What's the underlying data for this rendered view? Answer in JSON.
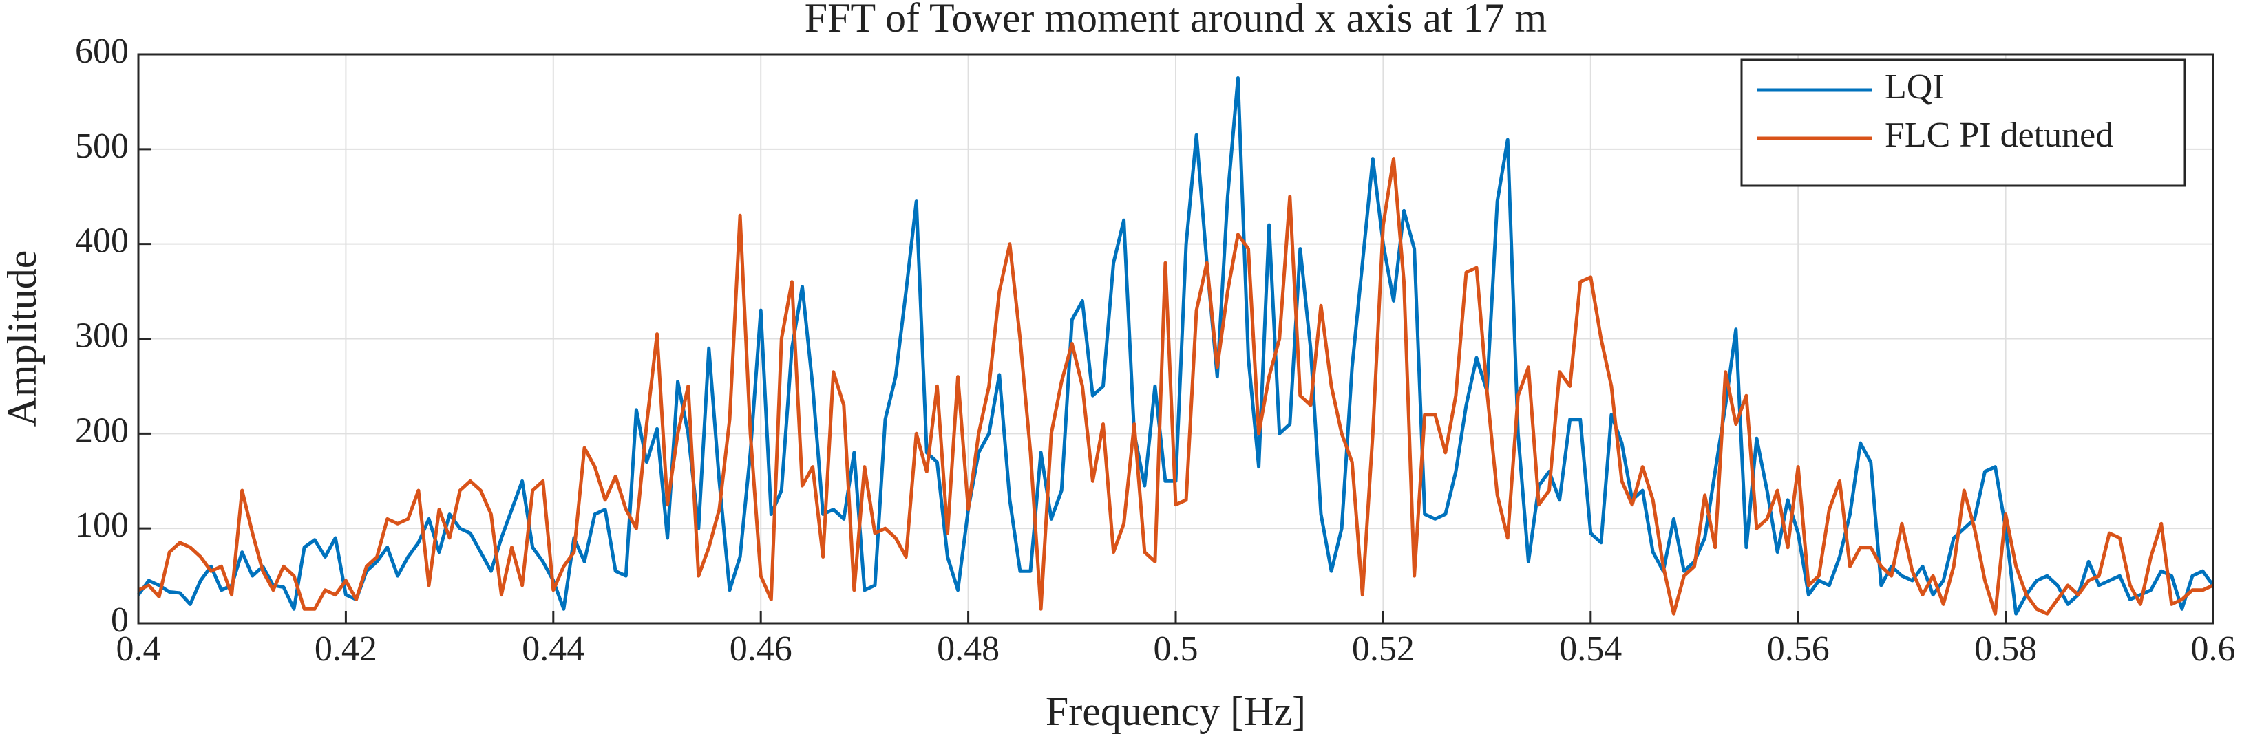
{
  "chart_data": {
    "type": "line",
    "title": "FFT of Tower moment around x axis at 17 m",
    "xlabel": "Frequency [Hz]",
    "ylabel": "Amplitude",
    "xlim": [
      0.4,
      0.6
    ],
    "ylim": [
      0,
      600
    ],
    "xticks": [
      0.4,
      0.42,
      0.44,
      0.46,
      0.48,
      0.5,
      0.52,
      0.54,
      0.56,
      0.58,
      0.6
    ],
    "yticks": [
      0,
      100,
      200,
      300,
      400,
      500,
      600
    ],
    "grid": true,
    "legend": "upper right",
    "x": [
      0.4,
      0.401,
      0.402,
      0.403,
      0.404,
      0.405,
      0.406,
      0.407,
      0.408,
      0.409,
      0.41,
      0.411,
      0.412,
      0.413,
      0.414,
      0.415,
      0.416,
      0.417,
      0.418,
      0.419,
      0.42,
      0.421,
      0.422,
      0.423,
      0.424,
      0.425,
      0.426,
      0.427,
      0.428,
      0.429,
      0.43,
      0.431,
      0.432,
      0.433,
      0.434,
      0.435,
      0.436,
      0.437,
      0.438,
      0.439,
      0.44,
      0.441,
      0.442,
      0.443,
      0.444,
      0.445,
      0.446,
      0.447,
      0.448,
      0.449,
      0.45,
      0.451,
      0.452,
      0.453,
      0.454,
      0.455,
      0.456,
      0.457,
      0.458,
      0.459,
      0.46,
      0.461,
      0.462,
      0.463,
      0.464,
      0.465,
      0.466,
      0.467,
      0.468,
      0.469,
      0.47,
      0.471,
      0.472,
      0.473,
      0.474,
      0.475,
      0.476,
      0.477,
      0.478,
      0.479,
      0.48,
      0.481,
      0.482,
      0.483,
      0.484,
      0.485,
      0.486,
      0.487,
      0.488,
      0.489,
      0.49,
      0.491,
      0.492,
      0.493,
      0.494,
      0.495,
      0.496,
      0.497,
      0.498,
      0.499,
      0.5,
      0.501,
      0.502,
      0.503,
      0.504,
      0.505,
      0.506,
      0.507,
      0.508,
      0.509,
      0.51,
      0.511,
      0.512,
      0.513,
      0.514,
      0.515,
      0.516,
      0.517,
      0.518,
      0.519,
      0.52,
      0.521,
      0.522,
      0.523,
      0.524,
      0.525,
      0.526,
      0.527,
      0.528,
      0.529,
      0.53,
      0.531,
      0.532,
      0.533,
      0.534,
      0.535,
      0.536,
      0.537,
      0.538,
      0.539,
      0.54,
      0.541,
      0.542,
      0.543,
      0.544,
      0.545,
      0.546,
      0.547,
      0.548,
      0.549,
      0.55,
      0.551,
      0.552,
      0.553,
      0.554,
      0.555,
      0.556,
      0.557,
      0.558,
      0.559,
      0.56,
      0.561,
      0.562,
      0.563,
      0.564,
      0.565,
      0.566,
      0.567,
      0.568,
      0.569,
      0.57,
      0.571,
      0.572,
      0.573,
      0.574,
      0.575,
      0.576,
      0.577,
      0.578,
      0.579,
      0.58,
      0.581,
      0.582,
      0.583,
      0.584,
      0.585,
      0.586,
      0.587,
      0.588,
      0.589,
      0.59,
      0.591,
      0.592,
      0.593,
      0.594,
      0.595,
      0.596,
      0.597,
      0.598,
      0.599,
      0.6
    ],
    "series": [
      {
        "name": "LQI",
        "color": "#0072bd",
        "values": [
          30,
          45,
          40,
          33,
          32,
          20,
          45,
          60,
          35,
          40,
          75,
          50,
          60,
          40,
          38,
          15,
          80,
          88,
          70,
          90,
          30,
          25,
          55,
          65,
          80,
          50,
          70,
          85,
          110,
          75,
          115,
          100,
          95,
          75,
          55,
          90,
          120,
          150,
          80,
          65,
          45,
          15,
          90,
          65,
          115,
          120,
          55,
          50,
          225,
          170,
          205,
          90,
          255,
          200,
          100,
          290,
          150,
          35,
          70,
          180,
          330,
          115,
          140,
          290,
          355,
          250,
          115,
          120,
          110,
          180,
          35,
          40,
          215,
          260,
          350,
          445,
          180,
          170,
          70,
          35,
          120,
          180,
          200,
          262,
          130,
          55,
          55,
          180,
          110,
          140,
          320,
          340,
          240,
          250,
          380,
          425,
          200,
          145,
          250,
          150,
          150,
          400,
          515,
          380,
          260,
          450,
          575,
          280,
          165,
          420,
          200,
          210,
          395,
          290,
          115,
          55,
          100,
          270,
          380,
          490,
          400,
          340,
          435,
          395,
          115,
          110,
          115,
          160,
          230,
          280,
          245,
          445,
          510,
          200,
          65,
          145,
          160,
          130,
          215,
          215,
          95,
          85,
          220,
          190,
          130,
          140,
          75,
          55,
          110,
          55,
          65,
          90,
          160,
          230,
          310,
          80,
          195,
          140,
          75,
          130,
          95,
          30,
          45,
          40,
          70,
          115,
          190,
          170,
          40,
          60,
          50,
          45,
          60,
          30,
          45,
          90,
          100,
          110,
          160,
          165,
          100,
          10,
          30,
          45,
          50,
          40,
          20,
          30,
          65,
          40,
          45,
          50,
          25,
          30,
          35,
          55,
          50,
          15,
          50,
          55,
          40
        ]
      },
      {
        "name": "FLC PI detuned",
        "color": "#d95319",
        "values": [
          35,
          40,
          28,
          75,
          85,
          80,
          70,
          55,
          60,
          30,
          140,
          95,
          55,
          35,
          60,
          50,
          15,
          15,
          35,
          30,
          45,
          25,
          60,
          70,
          110,
          105,
          110,
          140,
          40,
          120,
          90,
          140,
          150,
          140,
          115,
          30,
          80,
          40,
          140,
          150,
          35,
          60,
          75,
          185,
          165,
          130,
          155,
          120,
          100,
          210,
          305,
          125,
          200,
          250,
          50,
          80,
          120,
          215,
          430,
          200,
          50,
          25,
          300,
          360,
          145,
          165,
          70,
          265,
          230,
          35,
          165,
          95,
          100,
          90,
          70,
          200,
          160,
          250,
          95,
          260,
          120,
          200,
          250,
          350,
          400,
          300,
          180,
          15,
          200,
          255,
          295,
          250,
          150,
          210,
          75,
          105,
          210,
          75,
          65,
          380,
          125,
          130,
          330,
          380,
          270,
          350,
          410,
          395,
          200,
          260,
          300,
          450,
          240,
          230,
          335,
          250,
          200,
          170,
          30,
          200,
          420,
          490,
          360,
          50,
          220,
          220,
          180,
          240,
          370,
          375,
          245,
          135,
          90,
          240,
          270,
          125,
          140,
          265,
          250,
          360,
          365,
          300,
          250,
          150,
          125,
          165,
          130,
          60,
          10,
          50,
          60,
          135,
          80,
          265,
          210,
          240,
          100,
          110,
          140,
          80,
          165,
          40,
          50,
          120,
          150,
          60,
          80,
          80,
          60,
          50,
          105,
          55,
          30,
          50,
          20,
          60,
          140,
          100,
          45,
          10,
          115,
          60,
          30,
          15,
          10,
          25,
          40,
          30,
          45,
          50,
          95,
          90,
          40,
          20,
          70,
          105,
          20,
          25,
          35,
          35,
          40
        ]
      }
    ]
  }
}
